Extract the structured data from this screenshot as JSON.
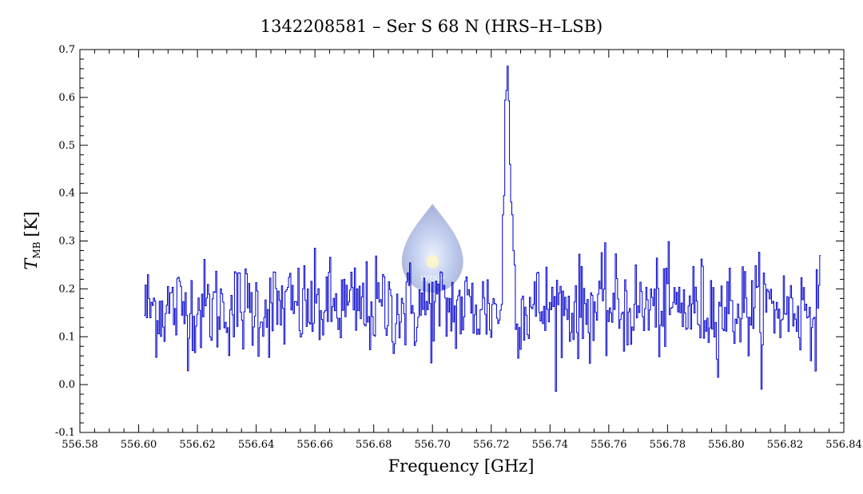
{
  "chart_data": {
    "type": "line",
    "title": "1342208581 – Ser S 68 N (HRS–H–LSB)",
    "xlabel": "Frequency [GHz]",
    "ylabel_main": "T",
    "ylabel_sub": "MB",
    "ylabel_unit": "[K]",
    "xlim": [
      556.58,
      556.84
    ],
    "ylim": [
      -0.1,
      0.7
    ],
    "x_ticks": [
      "556.58",
      "556.60",
      "556.62",
      "556.64",
      "556.66",
      "556.68",
      "556.70",
      "556.72",
      "556.74",
      "556.76",
      "556.78",
      "556.80",
      "556.82",
      "556.84"
    ],
    "y_ticks": [
      "-0.1",
      "0.0",
      "0.1",
      "0.2",
      "0.3",
      "0.4",
      "0.5",
      "0.6",
      "0.7"
    ],
    "series": [
      {
        "color": "#0000cc",
        "x_start": 556.602,
        "x_end": 556.832,
        "x_step": 0.0004,
        "baseline": 0.16,
        "noise_sigma": 0.05,
        "line_center": 556.7255,
        "line_peak": 0.64,
        "line_width": 0.0012,
        "absorption_center": 556.7235,
        "absorption_depth": -0.08
      }
    ],
    "watermark": {
      "text": "WISH",
      "icon": "wish-logo-drop-icon",
      "x": 556.7,
      "y": 0.29
    }
  }
}
